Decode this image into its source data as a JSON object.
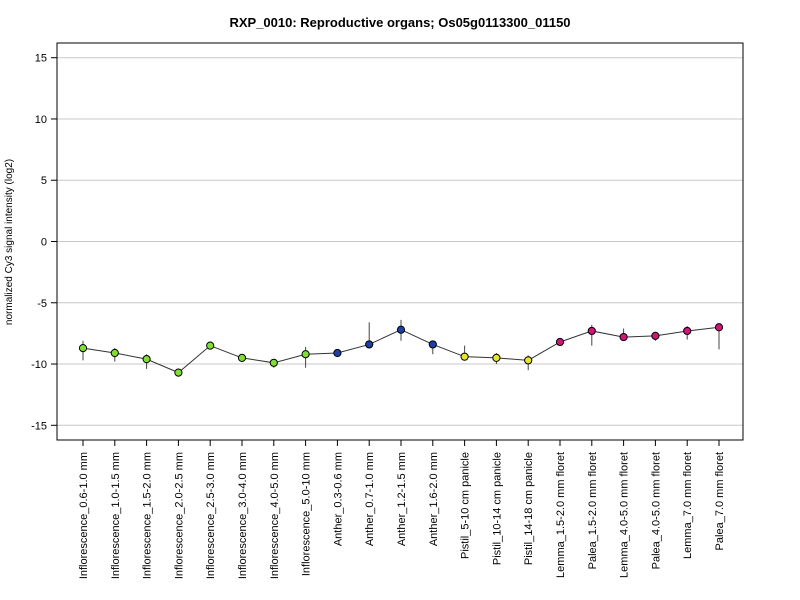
{
  "chart_data": {
    "type": "line",
    "title": "RXP_0010: Reproductive organs; Os05g0113300_01150",
    "ylabel": "normalized Cy3 signal intensity (log2)",
    "xlabel": "",
    "ylim": [
      -16.2,
      16.2
    ],
    "yticks": [
      -15,
      -10,
      -5,
      0,
      5,
      10,
      15
    ],
    "grid": true,
    "categories": [
      "Inflorescence_0.6-1.0 mm",
      "Inflorescence_1.0-1.5 mm",
      "Inflorescence_1.5-2.0 mm",
      "Inflorescence_2.0-2.5 mm",
      "Inflorescence_2.5-3.0 mm",
      "Inflorescence_3.0-4.0 mm",
      "Inflorescence_4.0-5.0 mm",
      "Inflorescence_5.0-10 mm",
      "Anther_0.3-0.6 mm",
      "Anther_0.7-1.0 mm",
      "Anther_1.2-1.5 mm",
      "Anther_1.6-2.0 mm",
      "Pistil_5-10 cm panicle",
      "Pistil_10-14 cm panicle",
      "Pistil_14-18 cm panicle",
      "Lemma_1.5-2.0 mm floret",
      "Palea_1.5-2.0 mm floret",
      "Lemma_4.0-5.0 mm floret",
      "Palea_4.0-5.0 mm floret",
      "Lemma_7.0 mm floret",
      "Palea_7.0 mm floret"
    ],
    "values": [
      -8.7,
      -9.1,
      -9.6,
      -10.7,
      -8.5,
      -9.5,
      -9.9,
      -9.2,
      -9.1,
      -8.4,
      -7.2,
      -8.4,
      -9.4,
      -9.5,
      -9.7,
      -8.2,
      -7.3,
      -7.8,
      -7.7,
      -7.3,
      -7.0
    ],
    "error_high": [
      -8.1,
      -8.7,
      -9.2,
      -10.6,
      -8.4,
      -9.4,
      -9.6,
      -8.6,
      -8.9,
      -6.6,
      -6.4,
      -8.2,
      -8.5,
      -9.1,
      -9.3,
      -8.0,
      -6.8,
      -7.1,
      -7.5,
      -6.9,
      -6.7
    ],
    "error_low": [
      -9.7,
      -9.8,
      -10.4,
      -10.8,
      -8.7,
      -9.6,
      -10.3,
      -10.3,
      -9.3,
      -8.5,
      -8.1,
      -9.2,
      -9.6,
      -10.0,
      -10.5,
      -8.4,
      -8.5,
      -7.9,
      -8.1,
      -8.0,
      -8.8
    ],
    "point_colors": [
      "#7fe032",
      "#7fe032",
      "#7fe032",
      "#7fe032",
      "#7fe032",
      "#7fe032",
      "#7fe032",
      "#7fe032",
      "#1f3fa8",
      "#1f3fa8",
      "#1f3fa8",
      "#1f3fa8",
      "#e6e62c",
      "#e6e62c",
      "#e6e62c",
      "#d1157a",
      "#d1157a",
      "#d1157a",
      "#d1157a",
      "#d1157a",
      "#d1157a"
    ]
  }
}
